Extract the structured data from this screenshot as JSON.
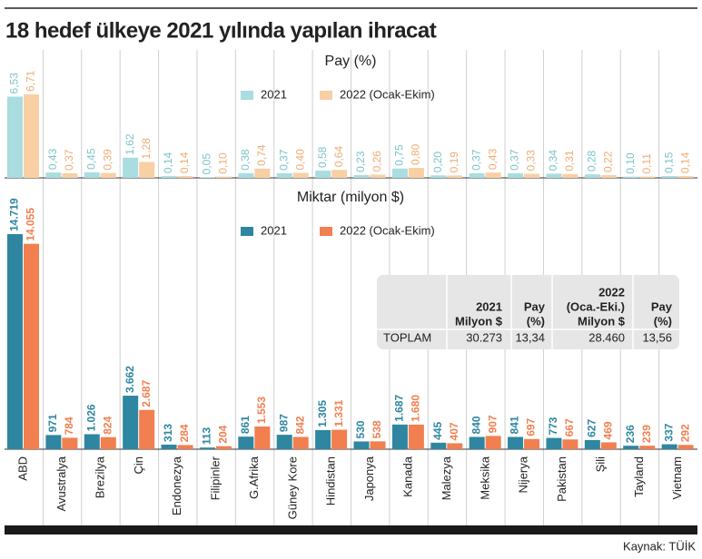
{
  "title": "18 hedef ülkeye 2021 yılında yapılan ihracat",
  "source": "Kaynak: TÜİK",
  "chart_data": [
    {
      "type": "bar",
      "title": "Pay (%)",
      "series": [
        {
          "name": "2021",
          "color": "#a9dde0",
          "label_color": "#7cc3c8",
          "values": [
            6.53,
            0.43,
            0.45,
            1.62,
            0.14,
            0.05,
            0.38,
            0.37,
            0.58,
            0.23,
            0.75,
            0.2,
            0.37,
            0.37,
            0.34,
            0.28,
            0.1,
            0.15
          ],
          "value_labels": [
            "6,53",
            "0,43",
            "0,45",
            "1,62",
            "0,14",
            "0,05",
            "0,38",
            "0,37",
            "0,58",
            "0,23",
            "0,75",
            "0,20",
            "0,37",
            "0,37",
            "0,34",
            "0,28",
            "0,10",
            "0,15"
          ]
        },
        {
          "name": "2022 (Ocak-Ekim)",
          "color": "#f9cfa4",
          "label_color": "#eeac74",
          "values": [
            6.71,
            0.37,
            0.39,
            1.28,
            0.14,
            0.1,
            0.74,
            0.4,
            0.64,
            0.26,
            0.8,
            0.19,
            0.43,
            0.33,
            0.31,
            0.22,
            0.11,
            0.14
          ],
          "value_labels": [
            "6,71",
            "0,37",
            "0,39",
            "1,28",
            "0,14",
            "0,10",
            "0,74",
            "0,40",
            "0,64",
            "0,26",
            "0,80",
            "0,19",
            "0,43",
            "0,33",
            "0,31",
            "0,22",
            "0,11",
            "0,14"
          ]
        }
      ]
    },
    {
      "type": "bar",
      "title": "Miktar (milyon $)",
      "categories": [
        "ABD",
        "Avustralya",
        "Brezilya",
        "Çin",
        "Endonezya",
        "Filipinler",
        "G.Afrika",
        "Güney Kore",
        "Hindistan",
        "Japonya",
        "Kanada",
        "Malezya",
        "Meksika",
        "Nijerya",
        "Pakistan",
        "Şili",
        "Tayland",
        "Vietnam"
      ],
      "series": [
        {
          "name": "2021",
          "color": "#2e86a1",
          "label_color": "#2e86a1",
          "values": [
            14719,
            971,
            1026,
            3662,
            313,
            113,
            861,
            987,
            1305,
            530,
            1687,
            445,
            840,
            841,
            773,
            627,
            236,
            337
          ],
          "value_labels": [
            "14.719",
            "971",
            "1.026",
            "3.662",
            "313",
            "113",
            "861",
            "987",
            "1.305",
            "530",
            "1.687",
            "445",
            "840",
            "841",
            "773",
            "627",
            "236",
            "337"
          ]
        },
        {
          "name": "2022 (Ocak-Ekim)",
          "color": "#f17f50",
          "label_color": "#f17f50",
          "values": [
            14055,
            784,
            824,
            2687,
            284,
            204,
            1553,
            842,
            1331,
            538,
            1680,
            407,
            907,
            697,
            667,
            469,
            239,
            292
          ],
          "value_labels": [
            "14.055",
            "784",
            "824",
            "2.687",
            "284",
            "204",
            "1.553",
            "842",
            "1.331",
            "538",
            "1.680",
            "407",
            "907",
            "697",
            "667",
            "469",
            "239",
            "292"
          ]
        }
      ]
    }
  ],
  "table": {
    "header": [
      [
        "2021",
        "Milyon $"
      ],
      [
        "Pay",
        "(%)"
      ],
      [
        "2022",
        "(Oca.-Eki.)",
        "Milyon $"
      ],
      [
        "Pay",
        "(%)"
      ]
    ],
    "rows": [
      [
        "TOPLAM",
        "30.273",
        "13,34",
        "28.460",
        "13,56"
      ]
    ]
  }
}
